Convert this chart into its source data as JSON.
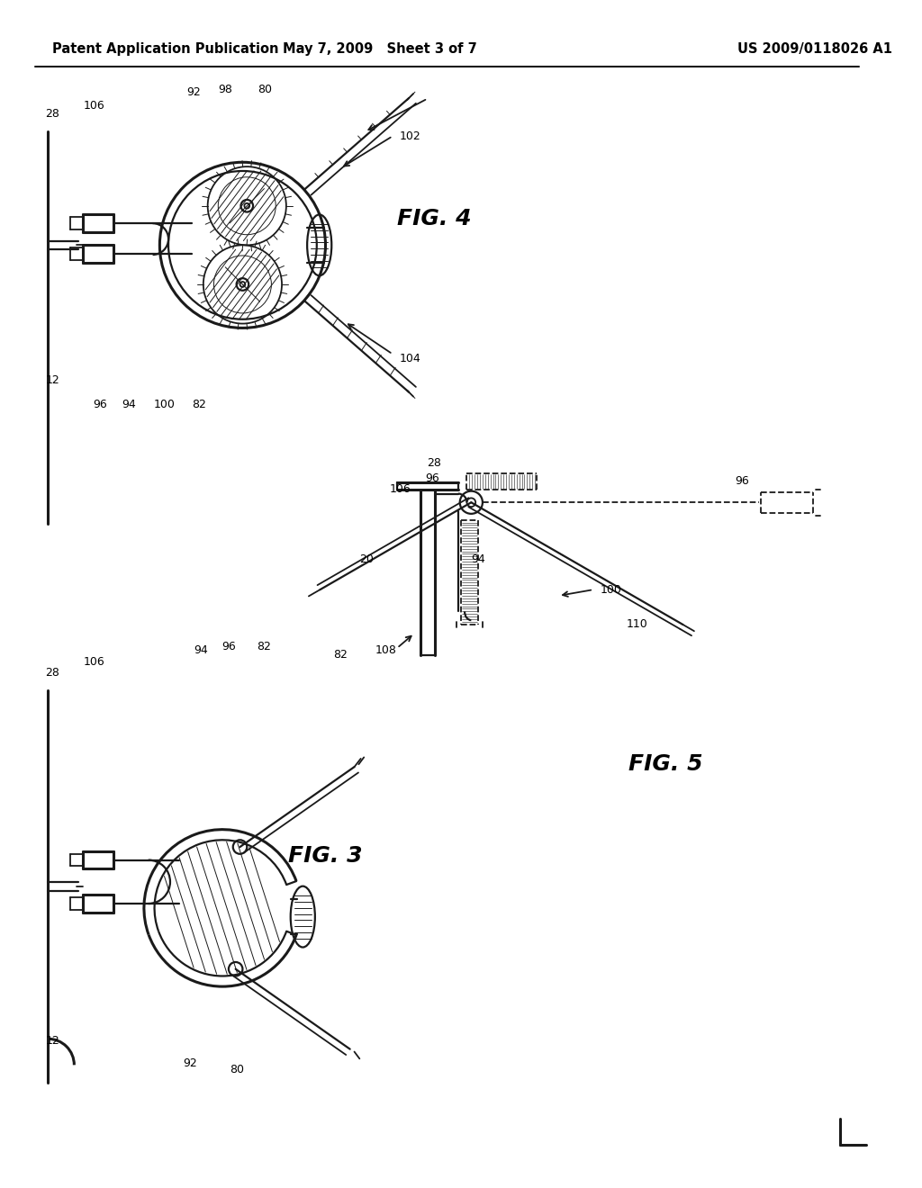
{
  "bg_color": "#ffffff",
  "header_left": "Patent Application Publication",
  "header_center": "May 7, 2009   Sheet 3 of 7",
  "header_right": "US 2009/0118026 A1",
  "line_color": "#1a1a1a",
  "line_width": 1.3,
  "thin_line": 0.7,
  "thick_line": 2.2,
  "med_line": 1.6
}
